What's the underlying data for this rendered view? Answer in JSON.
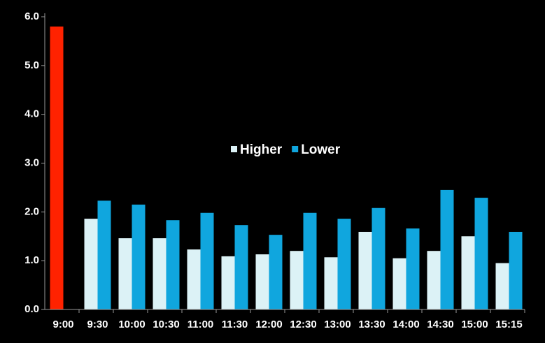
{
  "chart_data": {
    "type": "bar",
    "categories": [
      "9:00",
      "9:30",
      "10:00",
      "10:30",
      "11:00",
      "11:30",
      "12:00",
      "12:30",
      "13:00",
      "13:30",
      "14:00",
      "14:30",
      "15:00",
      "15:15"
    ],
    "series": [
      {
        "name": "Higher",
        "color": "#dcf2f6",
        "colors": [
          "#ff2200",
          "#dcf2f6",
          "#dcf2f6",
          "#dcf2f6",
          "#dcf2f6",
          "#dcf2f6",
          "#dcf2f6",
          "#dcf2f6",
          "#dcf2f6",
          "#dcf2f6",
          "#dcf2f6",
          "#dcf2f6",
          "#dcf2f6",
          "#dcf2f6"
        ],
        "values": [
          5.8,
          1.86,
          1.46,
          1.46,
          1.23,
          1.09,
          1.13,
          1.2,
          1.07,
          1.59,
          1.05,
          1.2,
          1.5,
          0.95
        ]
      },
      {
        "name": "Lower",
        "color": "#10a6de",
        "values": [
          null,
          2.23,
          2.15,
          1.83,
          1.98,
          1.73,
          1.53,
          1.98,
          1.86,
          2.08,
          1.66,
          2.45,
          2.29,
          1.59
        ]
      }
    ],
    "ylim": [
      0,
      6
    ],
    "yticks": [
      {
        "value": 0,
        "label": "0.0"
      },
      {
        "value": 1,
        "label": "1.0"
      },
      {
        "value": 2,
        "label": "2.0"
      },
      {
        "value": 3,
        "label": "3.0"
      },
      {
        "value": 4,
        "label": "4.0"
      },
      {
        "value": 5,
        "label": "5.0"
      },
      {
        "value": 6,
        "label": "6.0"
      }
    ],
    "grid": false,
    "legend": "center"
  }
}
